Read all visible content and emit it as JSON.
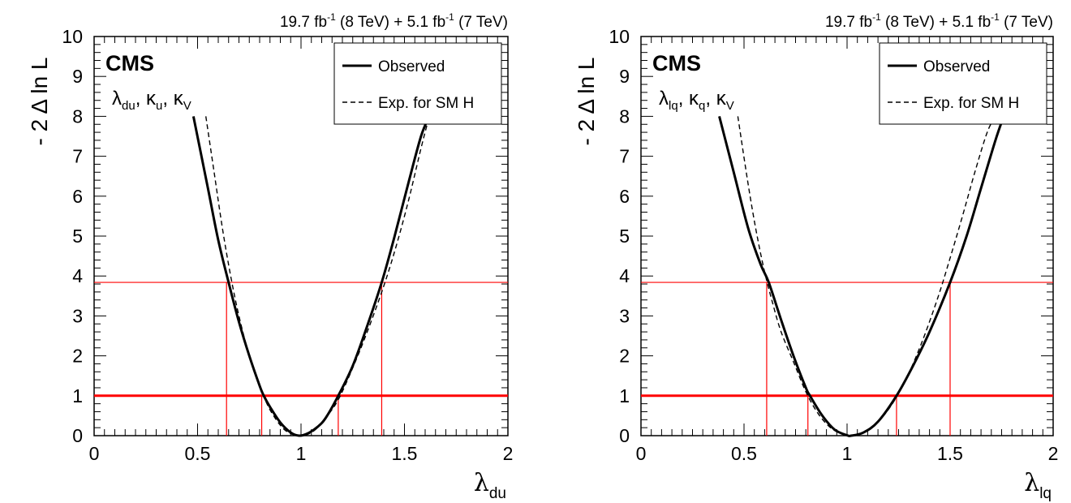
{
  "chart_data": [
    {
      "type": "line",
      "lumi_text": {
        "a": "19.7 fb",
        "a_sup": "-1",
        "b": " (8 TeV) +  5.1 fb",
        "b_sup": "-1",
        "c": " (7 TeV)"
      },
      "experiment_label": "CMS",
      "model_label": {
        "l1": "λ",
        "s1": "du",
        "l2": ", κ",
        "s2": "u",
        "l3": ", κ",
        "s3": "V"
      },
      "xlabel": {
        "sym": "λ",
        "sub": "du"
      },
      "ylabel": "- 2 Δ ln L",
      "xlim": [
        0,
        2
      ],
      "ylim": [
        0,
        10
      ],
      "xticks": [
        "0",
        "0.5",
        "1",
        "1.5",
        "2"
      ],
      "yticks": [
        "0",
        "1",
        "2",
        "3",
        "4",
        "5",
        "6",
        "7",
        "8",
        "9",
        "10"
      ],
      "legend": {
        "position": "top-right",
        "observed": "Observed",
        "expected": "Exp. for SM H"
      },
      "series": [
        {
          "name": "Observed",
          "style": "solid",
          "x": [
            0.48,
            0.55,
            0.6,
            0.65,
            0.7,
            0.75,
            0.8,
            0.82,
            0.85,
            0.9,
            0.95,
            0.99,
            1.03,
            1.08,
            1.12,
            1.18,
            1.25,
            1.32,
            1.39,
            1.45,
            1.52,
            1.58,
            1.62
          ],
          "y": [
            8.0,
            6.2,
            4.9,
            3.84,
            2.85,
            2.0,
            1.25,
            1.0,
            0.72,
            0.33,
            0.08,
            0.0,
            0.05,
            0.22,
            0.45,
            1.0,
            1.75,
            2.75,
            3.84,
            4.95,
            6.35,
            7.5,
            8.0
          ]
        },
        {
          "name": "Exp. for SM H",
          "style": "dashed",
          "x": [
            0.54,
            0.58,
            0.62,
            0.66,
            0.7,
            0.75,
            0.8,
            0.84,
            0.88,
            0.92,
            0.96,
            1.0,
            1.04,
            1.08,
            1.12,
            1.18,
            1.25,
            1.32,
            1.4,
            1.46,
            1.52,
            1.58,
            1.62
          ],
          "y": [
            8.0,
            6.6,
            5.2,
            4.0,
            3.0,
            2.0,
            1.25,
            0.75,
            0.4,
            0.15,
            0.03,
            0.0,
            0.05,
            0.2,
            0.45,
            0.9,
            1.7,
            2.6,
            3.75,
            4.75,
            5.9,
            7.2,
            8.0
          ]
        }
      ],
      "reference_lines": {
        "levels": [
          1.0,
          3.84
        ],
        "observed_intervals": {
          "one_sigma": [
            0.81,
            1.18
          ],
          "two_sigma": [
            0.64,
            1.39
          ]
        }
      }
    },
    {
      "type": "line",
      "lumi_text": {
        "a": "19.7 fb",
        "a_sup": "-1",
        "b": " (8 TeV) +  5.1 fb",
        "b_sup": "-1",
        "c": " (7 TeV)"
      },
      "experiment_label": "CMS",
      "model_label": {
        "l1": "λ",
        "s1": "lq",
        "l2": ", κ",
        "s2": "q",
        "l3": ", κ",
        "s3": "V"
      },
      "xlabel": {
        "sym": "λ",
        "sub": "lq"
      },
      "ylabel": "- 2 Δ ln L",
      "xlim": [
        0,
        2
      ],
      "ylim": [
        0,
        10
      ],
      "xticks": [
        "0",
        "0.5",
        "1",
        "1.5",
        "2"
      ],
      "yticks": [
        "0",
        "1",
        "2",
        "3",
        "4",
        "5",
        "6",
        "7",
        "8",
        "9",
        "10"
      ],
      "legend": {
        "position": "top-right",
        "observed": "Observed",
        "expected": "Exp. for SM H"
      },
      "series": [
        {
          "name": "Observed",
          "style": "solid",
          "x": [
            0.38,
            0.45,
            0.52,
            0.58,
            0.62,
            0.68,
            0.74,
            0.8,
            0.82,
            0.88,
            0.94,
            1.0,
            1.02,
            1.08,
            1.15,
            1.24,
            1.32,
            1.4,
            1.5,
            1.58,
            1.65,
            1.72,
            1.76
          ],
          "y": [
            8.0,
            6.6,
            5.2,
            4.3,
            3.84,
            2.9,
            2.0,
            1.2,
            1.0,
            0.5,
            0.15,
            0.01,
            0.0,
            0.08,
            0.35,
            1.0,
            1.75,
            2.6,
            3.84,
            5.0,
            6.2,
            7.4,
            8.0
          ]
        },
        {
          "name": "Exp. for SM H",
          "style": "dashed",
          "x": [
            0.47,
            0.52,
            0.56,
            0.6,
            0.64,
            0.68,
            0.74,
            0.8,
            0.86,
            0.92,
            0.98,
            1.02,
            1.06,
            1.12,
            1.2,
            1.28,
            1.36,
            1.44,
            1.5,
            1.56,
            1.62,
            1.68,
            1.72
          ],
          "y": [
            8.0,
            6.3,
            5.1,
            4.1,
            3.3,
            2.6,
            1.85,
            1.1,
            0.55,
            0.2,
            0.03,
            0.0,
            0.03,
            0.2,
            0.65,
            1.35,
            2.3,
            3.45,
            4.45,
            5.5,
            6.6,
            7.6,
            8.0
          ]
        }
      ],
      "reference_lines": {
        "levels": [
          1.0,
          3.84
        ],
        "observed_intervals": {
          "one_sigma": [
            0.81,
            1.24
          ],
          "two_sigma": [
            0.61,
            1.5
          ]
        }
      }
    }
  ]
}
